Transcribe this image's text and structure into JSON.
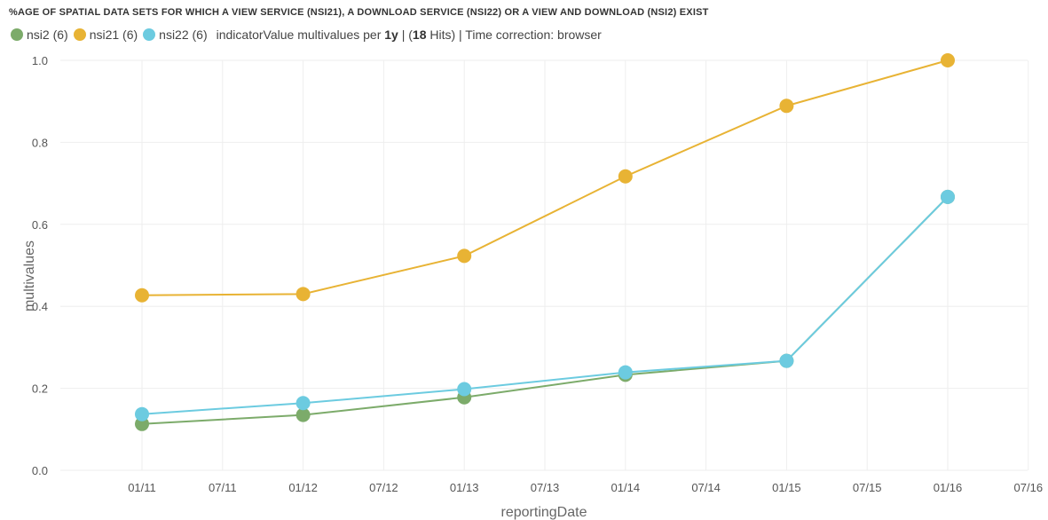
{
  "header": {
    "title": "%AGE OF SPATIAL DATA SETS FOR WHICH A VIEW SERVICE (NSI21), A DOWNLOAD SERVICE (NSI22) OR A VIEW AND DOWNLOAD (NSI2) EXIST"
  },
  "legend": {
    "items": [
      {
        "label": "nsi2 (6)",
        "color": "#7cab6a"
      },
      {
        "label": "nsi21 (6)",
        "color": "#e8b334"
      },
      {
        "label": "nsi22 (6)",
        "color": "#6ccbe0"
      }
    ],
    "info_prefix": "indicatorValue multivalues per ",
    "info_interval": "1y",
    "info_mid": " | (",
    "info_hits": "18",
    "info_suffix": " Hits) | Time correction: browser"
  },
  "chart_data": {
    "type": "line",
    "xlabel": "reportingDate",
    "ylabel": "multivalues",
    "ylim": [
      0,
      1.0
    ],
    "yticks": [
      "0.0",
      "0.2",
      "0.4",
      "0.6",
      "0.8",
      "1.0"
    ],
    "xticks": [
      "01/11",
      "07/11",
      "01/12",
      "07/12",
      "01/13",
      "07/13",
      "01/14",
      "07/14",
      "01/15",
      "07/15",
      "01/16",
      "07/16"
    ],
    "x": [
      "01/11",
      "01/12",
      "01/13",
      "01/14",
      "01/15",
      "01/16"
    ],
    "grid": true,
    "series": [
      {
        "name": "nsi2",
        "color": "#7cab6a",
        "values": [
          0.113,
          0.135,
          0.178,
          0.233,
          0.267,
          0.667
        ]
      },
      {
        "name": "nsi21",
        "color": "#e8b334",
        "values": [
          0.427,
          0.43,
          0.523,
          0.717,
          0.889,
          1.0
        ]
      },
      {
        "name": "nsi22",
        "color": "#6ccbe0",
        "values": [
          0.137,
          0.164,
          0.198,
          0.239,
          0.267,
          0.667
        ]
      }
    ]
  }
}
